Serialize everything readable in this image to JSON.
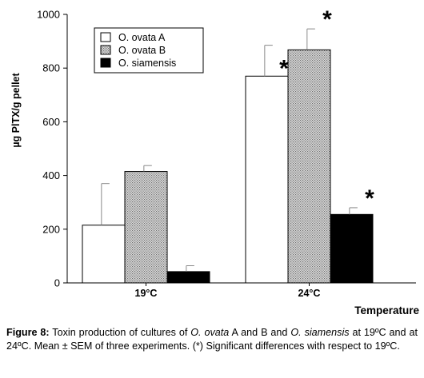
{
  "chart_data": {
    "type": "bar",
    "categories": [
      "19°C",
      "24°C"
    ],
    "series": [
      {
        "name": "O. ovata A",
        "values": [
          215,
          770
        ],
        "sem": [
          155,
          115
        ],
        "fill": "#ffffff"
      },
      {
        "name": "O. ovata B",
        "values": [
          415,
          868
        ],
        "sem": [
          22,
          78
        ],
        "fill": "hatch"
      },
      {
        "name": "O. siamensis",
        "values": [
          42,
          255
        ],
        "sem": [
          22,
          25
        ],
        "fill": "#000000"
      }
    ],
    "significant": [
      {
        "category": "24°C",
        "series": "O. ovata A",
        "label": "*"
      },
      {
        "category": "24°C",
        "series": "O. ovata B",
        "label": "*"
      },
      {
        "category": "24°C",
        "series": "O. siamensis",
        "label": "*"
      }
    ],
    "xlabel": "Temperature",
    "ylabel": "µg PlTX/g pellet",
    "ylim": [
      0,
      1000
    ],
    "yticks": [
      0,
      200,
      400,
      600,
      800,
      1000
    ],
    "grid": false,
    "legend_position": "top-left",
    "colors": {
      "outline": "#000000",
      "hatch_light": "#d9d9d9",
      "hatch_dark": "#6e6e6e",
      "solid": "#000000"
    }
  },
  "caption": {
    "figure_label": "Figure 8:",
    "segments": [
      {
        "text": " Toxin production of cultures of ",
        "italic": false
      },
      {
        "text": "O. ovata",
        "italic": true
      },
      {
        "text": " A and B and ",
        "italic": false
      },
      {
        "text": "O. siamensis",
        "italic": true
      },
      {
        "text": " at 19ºC and at 24ºC. Mean ± SEM of three experiments. (*) Significant differences with respect to 19ºC.",
        "italic": false
      }
    ]
  }
}
